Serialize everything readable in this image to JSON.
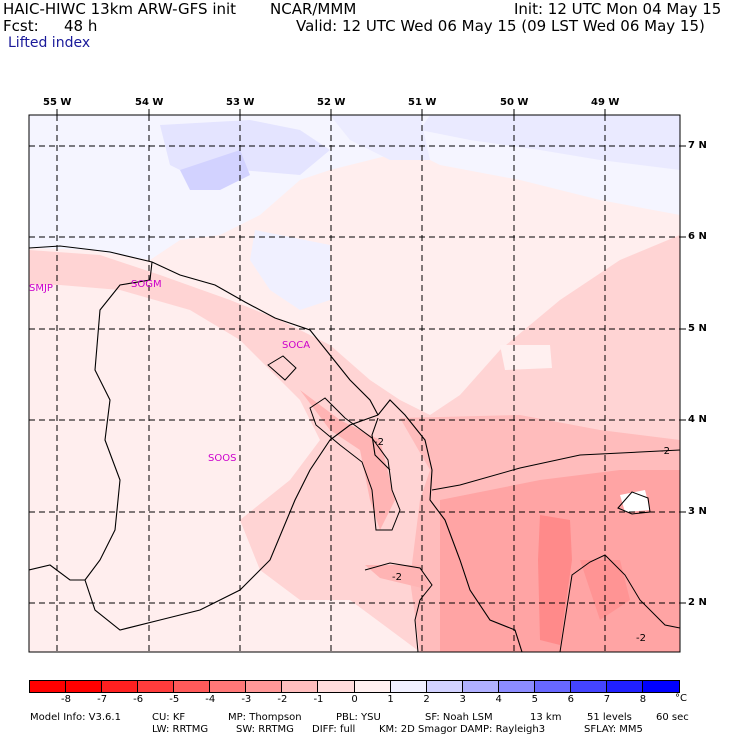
{
  "header": {
    "model": "HAIC-HIWC 13km ARW-GFS init",
    "center": "NCAR/MMM",
    "init": "Init: 12 UTC Mon 04 May 15",
    "fcst_label": "Fcst:",
    "fcst_value": "48 h",
    "valid": "Valid: 12 UTC Wed 06 May 15 (09 LST Wed 06 May 15)",
    "field": "Lifted index"
  },
  "map": {
    "lon_labels": [
      "55 W",
      "54 W",
      "53 W",
      "52 W",
      "51 W",
      "50 W",
      "49 W"
    ],
    "lat_labels": [
      "7 N",
      "6 N",
      "5 N",
      "4 N",
      "3 N",
      "2 N"
    ],
    "stations": [
      "SMJP",
      "SOGM",
      "SOCA",
      "SOOS"
    ],
    "contour_labels": [
      "-2",
      "-2",
      "-2",
      "-2"
    ],
    "contour_level": -2
  },
  "colorbar": {
    "unit": "°C",
    "ticks": [
      "-8",
      "-7",
      "-6",
      "-5",
      "-4",
      "-3",
      "-2",
      "-1",
      "0",
      "1",
      "2",
      "3",
      "4",
      "5",
      "6",
      "7",
      "8"
    ],
    "colors": [
      "#ff0000",
      "#ff2020",
      "#ff3c3c",
      "#ff5a5a",
      "#ff7878",
      "#ff9898",
      "#ffbebe",
      "#ffdcdc",
      "#fff0f0",
      "#f0f0ff",
      "#d2d2ff",
      "#b0b0ff",
      "#8c8cff",
      "#6868ff",
      "#4444ff",
      "#2020ff",
      "#0000ff"
    ]
  },
  "footer": {
    "line1": [
      "Model Info: V3.6.1",
      "CU: KF",
      "MP: Thompson",
      "PBL: YSU",
      "SF: Noah LSM",
      "13 km",
      "51 levels",
      "60 sec"
    ],
    "line2": [
      "LW: RRTMG",
      "SW: RRTMG",
      "DIFF: full",
      "KM: 2D Smagor",
      "DAMP: Rayleigh3",
      "SFLAY: MM5"
    ]
  }
}
